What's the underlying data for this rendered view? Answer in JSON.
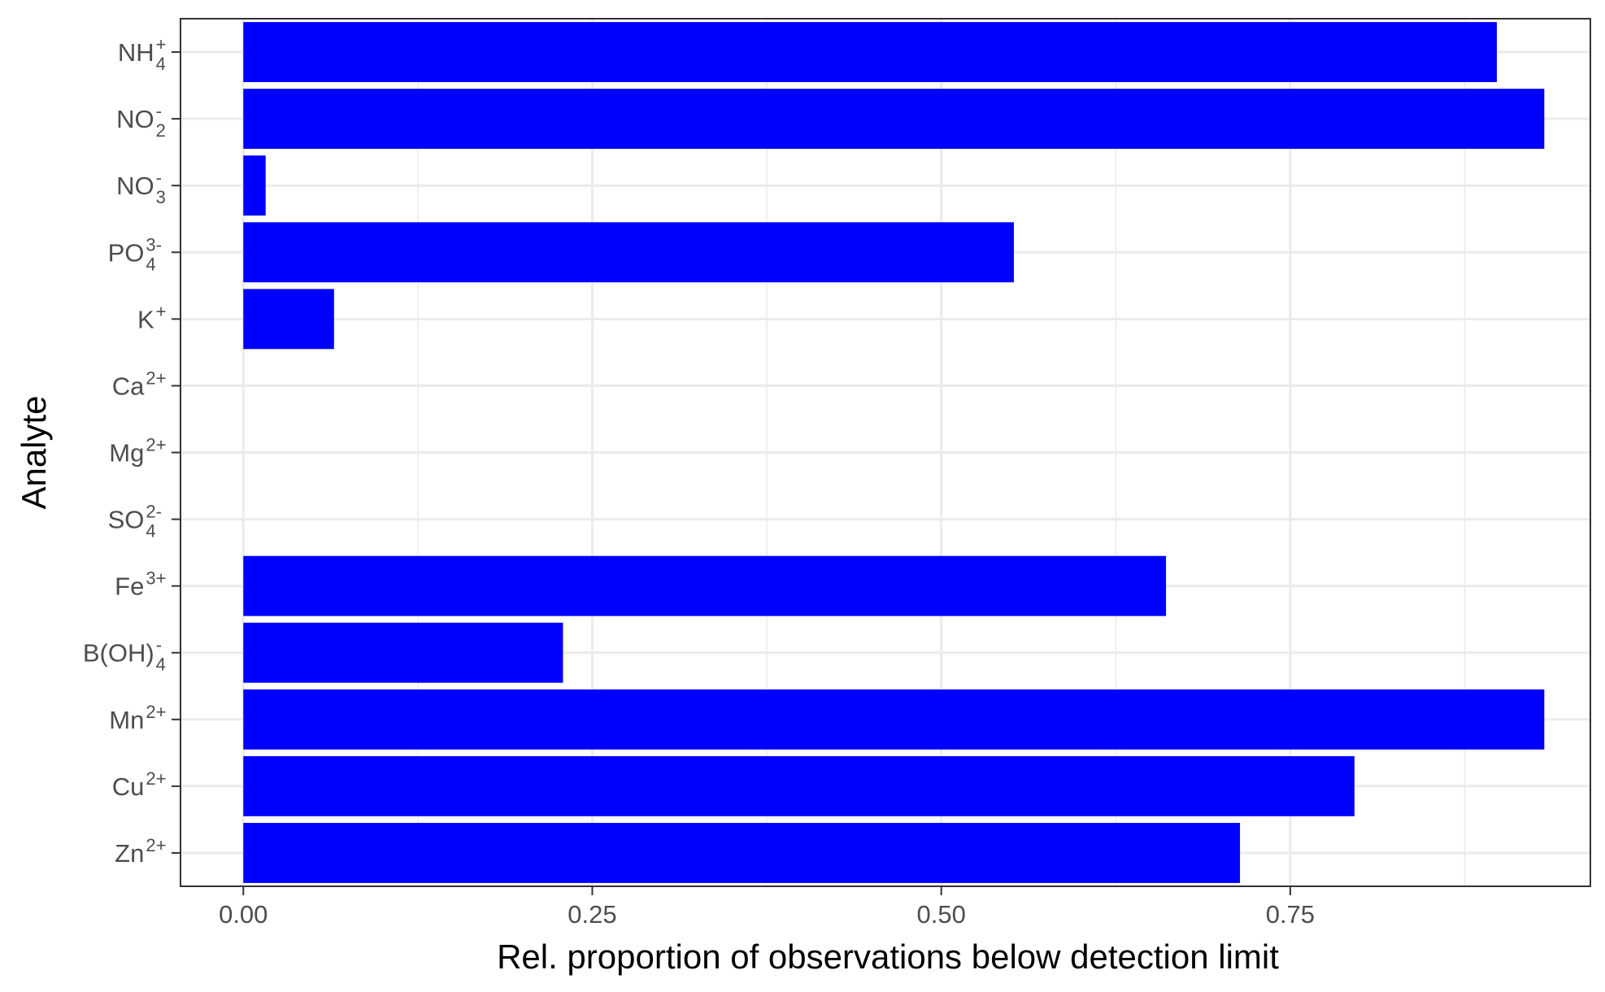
{
  "chart_data": {
    "type": "bar",
    "orientation": "horizontal",
    "title": "",
    "xlabel": "Rel. proportion of observations below detection limit",
    "ylabel": "Analyte",
    "xlim": [
      -0.045,
      0.965
    ],
    "xticks": [
      0.0,
      0.25,
      0.5,
      0.75
    ],
    "xtick_labels": [
      "0.00",
      "0.25",
      "0.50",
      "0.75"
    ],
    "grid": true,
    "legend": "none",
    "bar_color": "#0000ff",
    "categories": [
      {
        "base": "NH",
        "sub": "4",
        "sup": "+"
      },
      {
        "base": "NO",
        "sub": "2",
        "sup": "-"
      },
      {
        "base": "NO",
        "sub": "3",
        "sup": "-"
      },
      {
        "base": "PO",
        "sub": "4",
        "sup": "3-"
      },
      {
        "base": "K",
        "sub": "",
        "sup": "+"
      },
      {
        "base": "Ca",
        "sub": "",
        "sup": "2+"
      },
      {
        "base": "Mg",
        "sub": "",
        "sup": "2+"
      },
      {
        "base": "SO",
        "sub": "4",
        "sup": "2-"
      },
      {
        "base": "Fe",
        "sub": "",
        "sup": "3+"
      },
      {
        "base": "B(OH)",
        "sub": "4",
        "sup": "-"
      },
      {
        "base": "Mn",
        "sub": "",
        "sup": "2+"
      },
      {
        "base": "Cu",
        "sub": "",
        "sup": "2+"
      },
      {
        "base": "Zn",
        "sub": "",
        "sup": "2+"
      }
    ],
    "values": [
      0.898,
      0.932,
      0.016,
      0.552,
      0.065,
      0.0,
      0.0,
      0.0,
      0.661,
      0.229,
      0.932,
      0.796,
      0.714
    ]
  }
}
